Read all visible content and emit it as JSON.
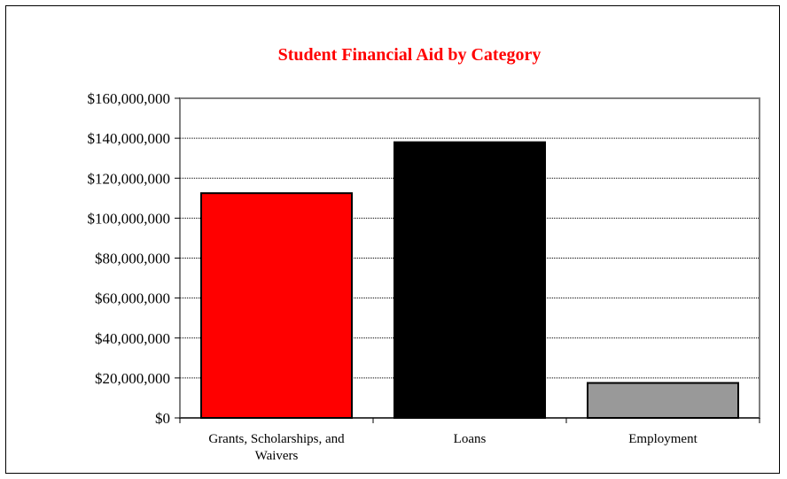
{
  "chart_data": {
    "type": "bar",
    "title": "Student Financial Aid by Category",
    "categories": [
      "Grants, Scholarships, and Waivers",
      "Loans",
      "Employment"
    ],
    "category_lines": [
      [
        "Grants, Scholarships, and",
        "Waivers"
      ],
      [
        "Loans"
      ],
      [
        "Employment"
      ]
    ],
    "values": [
      112500000,
      138000000,
      17500000
    ],
    "bar_colors": [
      "#ff0000",
      "#000000",
      "#999999"
    ],
    "ylim": [
      0,
      160000000
    ],
    "yticks": [
      0,
      20000000,
      40000000,
      60000000,
      80000000,
      100000000,
      120000000,
      140000000,
      160000000
    ],
    "ytick_labels": [
      "$0",
      "$20,000,000",
      "$40,000,000",
      "$60,000,000",
      "$80,000,000",
      "$100,000,000",
      "$120,000,000",
      "$140,000,000",
      "$160,000,000"
    ],
    "xlabel": "",
    "ylabel": "",
    "grid": true,
    "title_color": "#ff0000"
  }
}
